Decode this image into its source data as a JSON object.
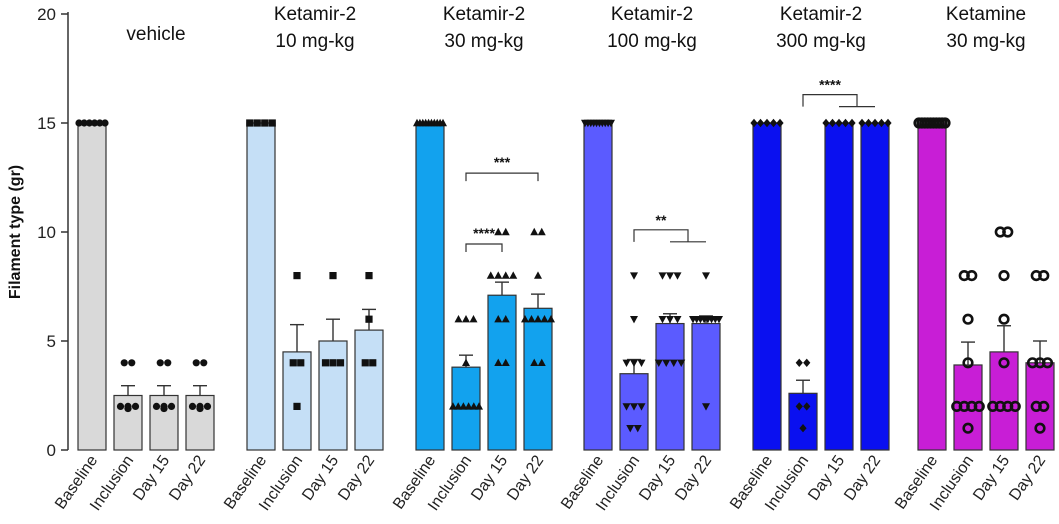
{
  "chart_data": {
    "type": "bar",
    "title": "",
    "xlabel": "",
    "ylabel": "Filament type (gr)",
    "ylim": [
      0,
      20
    ],
    "yticks": [
      0,
      5,
      10,
      15,
      20
    ],
    "timepoints": [
      "Baseline",
      "Inclusion",
      "Day 15",
      "Day 22"
    ],
    "groups": [
      {
        "name": "vehicle",
        "label_lines": [
          "vehicle"
        ],
        "color": "#d9d9d9",
        "marker": "circle",
        "means": [
          15,
          2.5,
          2.5,
          2.5
        ],
        "sem": [
          0,
          0.45,
          0.45,
          0.45
        ],
        "points": [
          [
            15,
            15,
            15,
            15,
            15,
            15
          ],
          [
            4,
            4,
            2,
            2,
            2,
            1.9
          ],
          [
            4,
            4,
            2,
            2,
            2,
            1.9
          ],
          [
            4,
            4,
            2,
            2,
            2,
            1.9
          ]
        ],
        "brackets": []
      },
      {
        "name": "Ketamir-2 10 mg-kg",
        "label_lines": [
          "Ketamir-2",
          "10 mg-kg"
        ],
        "color": "#c5dff6",
        "marker": "square",
        "means": [
          15,
          4.5,
          5.0,
          5.5
        ],
        "sem": [
          0,
          1.25,
          1.0,
          0.95
        ],
        "points": [
          [
            15,
            15,
            15,
            15
          ],
          [
            8,
            4,
            4,
            2
          ],
          [
            8,
            4,
            4,
            4
          ],
          [
            8,
            6,
            4,
            4
          ]
        ],
        "brackets": []
      },
      {
        "name": "Ketamir-2 30 mg-kg",
        "label_lines": [
          "Ketamir-2",
          "30 mg-kg"
        ],
        "color": "#12a2ee",
        "marker": "triangle-up",
        "means": [
          15,
          3.8,
          7.1,
          6.5
        ],
        "sem": [
          0,
          0.55,
          0.6,
          0.65
        ],
        "points": [
          [
            15,
            15,
            15,
            15,
            15,
            15,
            15,
            15,
            15,
            15
          ],
          [
            6,
            6,
            6,
            4,
            2,
            2,
            2,
            2,
            2,
            2
          ],
          [
            10,
            10,
            8,
            8,
            8,
            8,
            6,
            6,
            4,
            4
          ],
          [
            10,
            10,
            8,
            6,
            6,
            6,
            6,
            6,
            4,
            4
          ]
        ],
        "brackets": [
          {
            "from": 1,
            "to": 2,
            "label": "****",
            "y": 9.45
          },
          {
            "from": 1,
            "to": 3,
            "label": "***",
            "y": 12.7
          }
        ]
      },
      {
        "name": "Ketamir-2 100 mg-kg",
        "label_lines": [
          "Ketamir-2",
          "100 mg-kg"
        ],
        "color": "#5b5bff",
        "marker": "triangle-down",
        "means": [
          15,
          3.5,
          5.8,
          5.8
        ],
        "sem": [
          0,
          0.65,
          0.45,
          0.35
        ],
        "points": [
          [
            15,
            15,
            15,
            15,
            15,
            15,
            15,
            15,
            15,
            15
          ],
          [
            8,
            6,
            4,
            4,
            4,
            2,
            2,
            2,
            1,
            1
          ],
          [
            8,
            8,
            8,
            6,
            6,
            6,
            4,
            4,
            4,
            4
          ],
          [
            8,
            6,
            6,
            6,
            6,
            6,
            6,
            6,
            6,
            2
          ]
        ],
        "brackets": [
          {
            "from": 1,
            "to": [
              2,
              3
            ],
            "label": "**",
            "y": 10.1
          }
        ]
      },
      {
        "name": "Ketamir-2 300 mg-kg",
        "label_lines": [
          "Ketamir-2",
          "300 mg-kg"
        ],
        "color": "#0a10f0",
        "marker": "diamond",
        "means": [
          15,
          2.6,
          15,
          15
        ],
        "sem": [
          0,
          0.6,
          0,
          0
        ],
        "points": [
          [
            15,
            15,
            15,
            15,
            15
          ],
          [
            4,
            4,
            2,
            2,
            1
          ],
          [
            15,
            15,
            15,
            15,
            15
          ],
          [
            15,
            15,
            15,
            15,
            15
          ]
        ],
        "brackets": [
          {
            "from": 1,
            "to": [
              2,
              3
            ],
            "label": "****",
            "y": 16.3
          }
        ]
      },
      {
        "name": "Ketamine 30 mg-kg",
        "label_lines": [
          "Ketamine",
          "30 mg-kg"
        ],
        "color": "#c81ed6",
        "marker": "hollow-circle",
        "means": [
          15,
          3.9,
          4.5,
          4.0
        ],
        "sem": [
          0,
          1.05,
          1.2,
          1.0
        ],
        "points": [
          [
            15,
            15,
            15,
            15,
            15,
            15,
            15,
            15,
            15,
            15
          ],
          [
            8,
            8,
            6,
            4,
            2,
            2,
            2,
            2,
            1
          ],
          [
            10,
            10,
            8,
            6,
            4,
            2,
            2,
            2,
            2
          ],
          [
            8,
            8,
            4,
            4,
            4,
            2,
            2,
            1
          ]
        ],
        "brackets": []
      }
    ]
  }
}
